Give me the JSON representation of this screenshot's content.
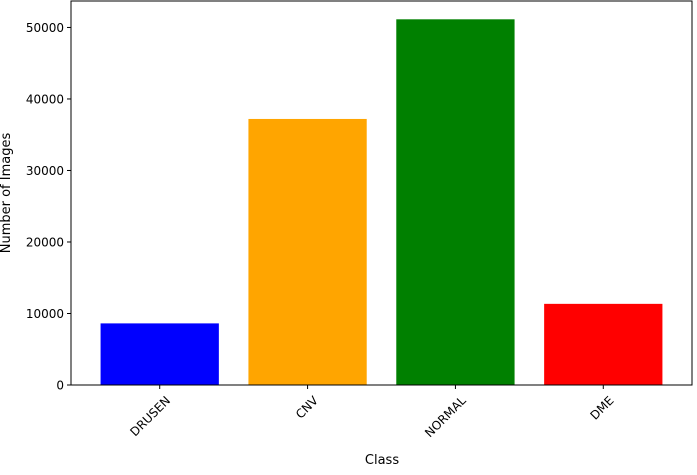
{
  "chart_data": {
    "type": "bar",
    "title": "",
    "xlabel": "Class",
    "ylabel": "Number of Images",
    "categories": [
      "DRUSEN",
      "CNV",
      "NORMAL",
      "DME"
    ],
    "values": [
      8616,
      37205,
      51140,
      11348
    ],
    "colors": [
      "#0000ff",
      "#ffa500",
      "#008000",
      "#ff0000"
    ],
    "ylim": [
      0,
      53700
    ],
    "yticks": [
      0,
      10000,
      20000,
      30000,
      40000,
      50000
    ],
    "ytick_labels": [
      "0",
      "10000",
      "20000",
      "30000",
      "40000",
      "50000"
    ],
    "grid": false,
    "xtick_rotation_deg": 45
  }
}
